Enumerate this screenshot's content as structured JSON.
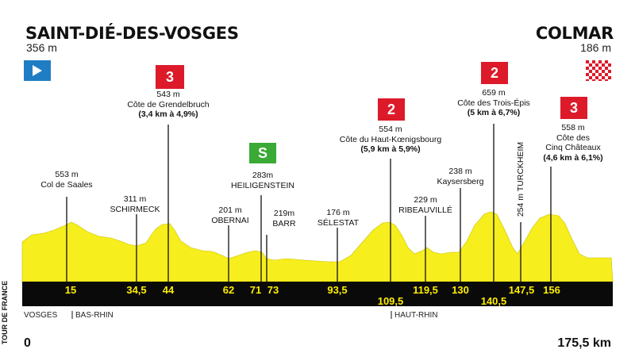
{
  "start": {
    "name": "SAINT-DIÉ-DES-VOSGES",
    "altitude": "356 m"
  },
  "finish": {
    "name": "COLMAR",
    "altitude": "186 m"
  },
  "colors": {
    "profile": "#f6ee1d",
    "band": "#0a0a0a",
    "km_text": "#ffee00",
    "climb_flag": "#dd1a2a",
    "sprint_flag": "#3aa935",
    "start_flag": "#1f7dc4"
  },
  "climbs": [
    {
      "category": "3",
      "altitude": "543 m",
      "name": "Côte de Grendelbruch",
      "detail": "(3,4 km à 4,9%)"
    },
    {
      "category": "2",
      "altitude": "554 m",
      "name": "Côte du Haut-Kœnigsbourg",
      "detail": "(5,9 km à 5,9%)"
    },
    {
      "category": "2",
      "altitude": "659 m",
      "name": "Côte des Trois-Épis",
      "detail": "(5 km à 6,7%)"
    },
    {
      "category": "3",
      "altitude": "558 m",
      "name_line1": "Côte des",
      "name_line2": "Cinq Châteaux",
      "detail": "(4,6 km à 6,1%)"
    }
  ],
  "sprint": {
    "icon": "sprint-flag-icon",
    "letter": "S",
    "altitude": "283m",
    "name": "HEILIGENSTEIN"
  },
  "places": [
    {
      "altitude": "553 m",
      "name": "Col de Saales"
    },
    {
      "altitude": "311 m",
      "name": "SCHIRMECK"
    },
    {
      "altitude": "201 m",
      "name": "OBERNAI"
    },
    {
      "altitude": "219m",
      "name": "BARR"
    },
    {
      "altitude": "176 m",
      "name": "SÉLESTAT"
    },
    {
      "altitude": "229 m",
      "name": "RIBEAUVILLÉ"
    },
    {
      "altitude": "238 m",
      "name": "Kaysersberg"
    },
    {
      "vertical": "254 m TURCKHEIM"
    }
  ],
  "km_marks": [
    "15",
    "34,5",
    "44",
    "62",
    "71",
    "73",
    "93,5",
    "109,5",
    "119,5",
    "130",
    "140,5",
    "147,5",
    "156"
  ],
  "regions": {
    "vosges": "VOSGES",
    "bas_rhin": "BAS-RHIN",
    "haut_rhin": "HAUT-RHIN"
  },
  "distance": {
    "start": "0",
    "end": "175,5 km"
  },
  "brand": "TOUR DE FRANCE"
}
